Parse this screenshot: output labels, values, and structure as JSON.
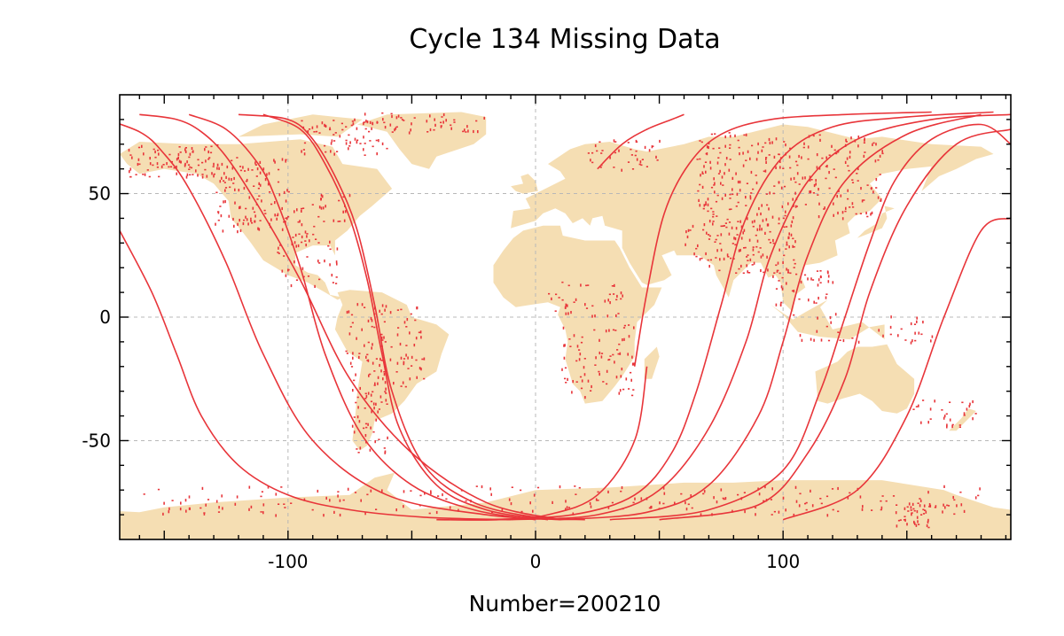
{
  "chart_data": {
    "type": "scatter",
    "title": "Cycle 134 Missing Data",
    "xlabel": "Number=200210",
    "ylabel": "",
    "xlim": [
      -168,
      192
    ],
    "ylim": [
      -90,
      90
    ],
    "x_ticks": [
      {
        "value": -100,
        "label": "-100"
      },
      {
        "value": 0,
        "label": "0"
      },
      {
        "value": 100,
        "label": "100"
      }
    ],
    "y_ticks": [
      {
        "value": 50,
        "label": "50"
      },
      {
        "value": 0,
        "label": "0"
      },
      {
        "value": -50,
        "label": "-50"
      }
    ],
    "grid": true,
    "colors": {
      "missing": "#e8353a",
      "land": "#f5deb3",
      "grid": "#b8b8b8"
    },
    "tracks": [
      {
        "x": [
          -180,
          -160,
          -150,
          -140,
          -125,
          -110,
          -90,
          -60,
          -20,
          10
        ],
        "y": [
          82,
          75,
          66,
          52,
          22,
          -15,
          -50,
          -72,
          -80,
          -82
        ]
      },
      {
        "x": [
          -168,
          -155,
          -145,
          -135,
          -120,
          -100,
          -75,
          -45,
          -10
        ],
        "y": [
          35,
          10,
          -15,
          -40,
          -60,
          -72,
          -78,
          -81,
          -82
        ]
      },
      {
        "x": [
          -160,
          -145,
          -135,
          -125,
          -112,
          -95,
          -75,
          -50,
          -20,
          10
        ],
        "y": [
          82,
          80,
          75,
          65,
          45,
          15,
          -25,
          -55,
          -75,
          -82
        ]
      },
      {
        "x": [
          -140,
          -125,
          -112,
          -105,
          -95,
          -85,
          -70,
          -50,
          -25,
          0
        ],
        "y": [
          82,
          76,
          62,
          48,
          20,
          -15,
          -48,
          -68,
          -78,
          -82
        ]
      },
      {
        "x": [
          -120,
          -100,
          -90,
          -80,
          -72,
          -65,
          -58,
          -45,
          -25,
          0,
          20
        ],
        "y": [
          82,
          80,
          72,
          55,
          35,
          5,
          -30,
          -60,
          -75,
          -81,
          -82
        ]
      },
      {
        "x": [
          -110,
          -95,
          -85,
          -75,
          -68,
          -62,
          -55,
          -40,
          -20,
          5
        ],
        "y": [
          82,
          76,
          62,
          40,
          15,
          -15,
          -45,
          -68,
          -78,
          -82
        ]
      },
      {
        "x": [
          -40,
          -15,
          5,
          25,
          40,
          45
        ],
        "y": [
          -82,
          -82,
          -80,
          -72,
          -50,
          -20
        ]
      },
      {
        "x": [
          25,
          35,
          45,
          55,
          60
        ],
        "y": [
          60,
          70,
          76,
          80,
          82
        ]
      },
      {
        "x": [
          40,
          45,
          52,
          62,
          75,
          95,
          125,
          160
        ],
        "y": [
          -20,
          10,
          42,
          62,
          74,
          80,
          82,
          83
        ]
      },
      {
        "x": [
          -20,
          15,
          40,
          55,
          65,
          75,
          85,
          100,
          120,
          150,
          185
        ],
        "y": [
          -82,
          -80,
          -72,
          -55,
          -30,
          5,
          40,
          65,
          77,
          81,
          83
        ]
      },
      {
        "x": [
          -10,
          25,
          50,
          70,
          85,
          95,
          110,
          130,
          160,
          192
        ],
        "y": [
          -82,
          -80,
          -70,
          -45,
          -10,
          25,
          55,
          72,
          80,
          82
        ]
      },
      {
        "x": [
          10,
          45,
          70,
          90,
          100,
          110,
          125,
          150,
          180
        ],
        "y": [
          -82,
          -79,
          -68,
          -40,
          -10,
          25,
          55,
          74,
          82
        ]
      },
      {
        "x": [
          30,
          70,
          100,
          115,
          125,
          135,
          145,
          160,
          180,
          192
        ],
        "y": [
          -82,
          -78,
          -62,
          -30,
          0,
          30,
          55,
          72,
          78,
          70
        ]
      },
      {
        "x": [
          50,
          90,
          110,
          125,
          135,
          150,
          170,
          192
        ],
        "y": [
          -82,
          -76,
          -55,
          -25,
          10,
          45,
          70,
          76
        ]
      },
      {
        "x": [
          100,
          130,
          150,
          165,
          180,
          192
        ],
        "y": [
          -82,
          -70,
          -40,
          0,
          35,
          40
        ]
      }
    ],
    "missing_clusters": [
      {
        "x": [
          -165,
          -128
        ],
        "y": [
          57,
          70
        ],
        "n": 90
      },
      {
        "x": [
          -130,
          -100
        ],
        "y": [
          35,
          65
        ],
        "n": 120
      },
      {
        "x": [
          -100,
          -75
        ],
        "y": [
          28,
          50
        ],
        "n": 50
      },
      {
        "x": [
          -105,
          -80
        ],
        "y": [
          12,
          30
        ],
        "n": 30
      },
      {
        "x": [
          -78,
          -45
        ],
        "y": [
          -28,
          6
        ],
        "n": 110
      },
      {
        "x": [
          -75,
          -60
        ],
        "y": [
          -55,
          -28
        ],
        "n": 50
      },
      {
        "x": [
          -95,
          -60
        ],
        "y": [
          65,
          80
        ],
        "n": 60
      },
      {
        "x": [
          -75,
          -20
        ],
        "y": [
          75,
          83
        ],
        "n": 60
      },
      {
        "x": [
          10,
          40
        ],
        "y": [
          -32,
          -2
        ],
        "n": 80
      },
      {
        "x": [
          5,
          35
        ],
        "y": [
          0,
          15
        ],
        "n": 40
      },
      {
        "x": [
          20,
          50
        ],
        "y": [
          60,
          72
        ],
        "n": 40
      },
      {
        "x": [
          65,
          140
        ],
        "y": [
          40,
          75
        ],
        "n": 280
      },
      {
        "x": [
          60,
          105
        ],
        "y": [
          18,
          40
        ],
        "n": 140
      },
      {
        "x": [
          95,
          120
        ],
        "y": [
          5,
          20
        ],
        "n": 40
      },
      {
        "x": [
          100,
          160
        ],
        "y": [
          -10,
          2
        ],
        "n": 40
      },
      {
        "x": [
          150,
          180
        ],
        "y": [
          -45,
          -33
        ],
        "n": 30
      },
      {
        "x": [
          -160,
          180
        ],
        "y": [
          -80,
          -68
        ],
        "n": 220
      },
      {
        "x": [
          145,
          165
        ],
        "y": [
          -85,
          -75
        ],
        "n": 40
      }
    ]
  }
}
